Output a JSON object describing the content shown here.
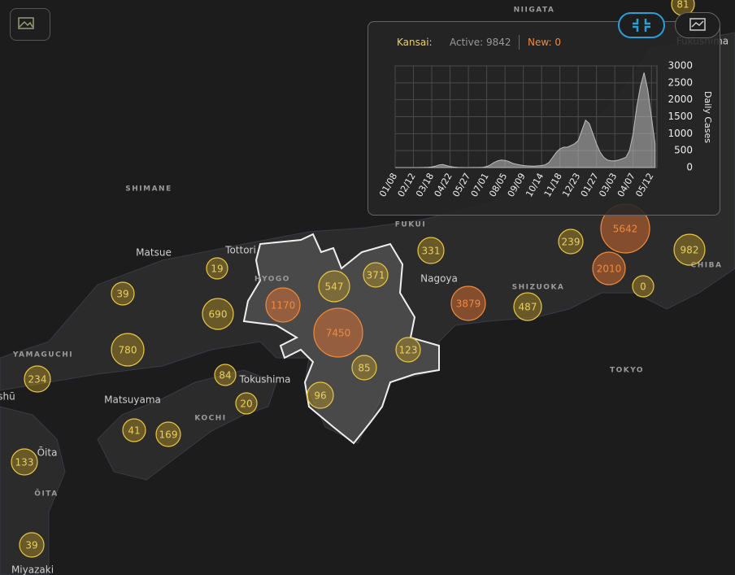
{
  "header": {
    "region": "Kansai:",
    "active": "Active: 9842",
    "new": "New: 0"
  },
  "chart_data": {
    "type": "area",
    "y_label": "Daily Cases",
    "color": "#bdbdbd",
    "grid": true,
    "categories": [
      "01/08",
      null,
      null,
      null,
      null,
      "02/12",
      null,
      null,
      null,
      null,
      "03/18",
      null,
      null,
      null,
      null,
      "04/22",
      null,
      null,
      null,
      null,
      "05/27",
      null,
      null,
      null,
      null,
      "07/01",
      null,
      null,
      null,
      null,
      "08/05",
      null,
      null,
      null,
      null,
      "09/09",
      null,
      null,
      null,
      null,
      "10/14",
      null,
      null,
      null,
      null,
      "11/18",
      null,
      null,
      null,
      null,
      "12/23",
      null,
      null,
      null,
      null,
      "01/27",
      null,
      null,
      null,
      null,
      "03/03",
      null,
      null,
      null,
      null,
      "04/07",
      null,
      null,
      null,
      null,
      "05/12",
      null
    ],
    "values": [
      0,
      0,
      0,
      0,
      0,
      0,
      1,
      2,
      5,
      10,
      20,
      40,
      80,
      90,
      60,
      30,
      15,
      5,
      2,
      1,
      1,
      2,
      3,
      5,
      10,
      30,
      80,
      150,
      200,
      220,
      210,
      180,
      130,
      100,
      80,
      60,
      50,
      45,
      40,
      50,
      60,
      80,
      150,
      300,
      450,
      550,
      600,
      600,
      650,
      700,
      800,
      1100,
      1400,
      1300,
      1000,
      700,
      450,
      300,
      220,
      200,
      200,
      220,
      260,
      300,
      500,
      1000,
      1800,
      2400,
      2800,
      2300,
      1500,
      700
    ],
    "ylim": [
      0,
      3000
    ],
    "yticks": [
      0,
      500,
      1000,
      1500,
      2000,
      2500,
      3000
    ]
  },
  "map": {
    "labels": [
      "NIIGATA",
      "Fukushima",
      "SHIMANE",
      "Matsue",
      "Tottori",
      "HYOGO",
      "FUKUI",
      "Nagoya",
      "SHIZUOKA",
      "CHIBA",
      "TOKYO",
      "YAMAGUCHI",
      "Tokushima",
      "Matsuyama",
      "KOCHI",
      "Ōita",
      "ŌITA",
      "Miyazaki",
      "shū"
    ],
    "clusters": [
      81,
      5642,
      239,
      982,
      2010,
      0,
      331,
      371,
      547,
      19,
      39,
      1170,
      690,
      7450,
      3879,
      487,
      123,
      85,
      780,
      84,
      234,
      96,
      20,
      41,
      169,
      133,
      39
    ]
  }
}
